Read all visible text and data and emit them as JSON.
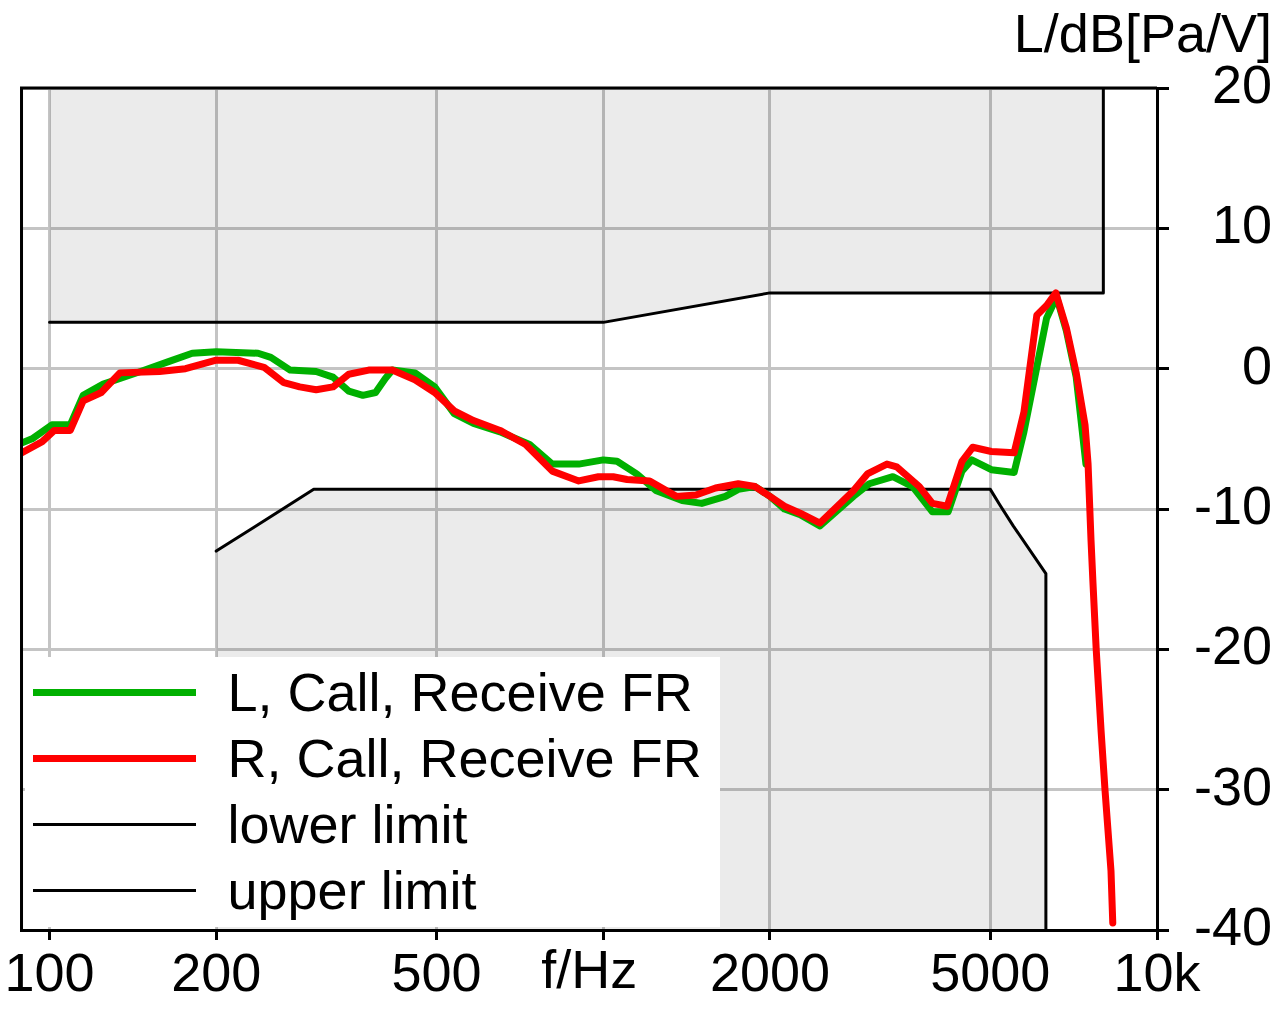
{
  "chart_data": {
    "type": "line",
    "xlabel": "f/Hz",
    "ylabel": "L/dB[Pa/V]",
    "log": "x",
    "grid": true,
    "legend": "bottom left",
    "xlim": [
      89,
      10000
    ],
    "ylim": [
      -40,
      20
    ],
    "xticks": [
      100,
      200,
      500,
      {
        "value": 1000,
        "label": null
      },
      2000,
      5000,
      {
        "value": 10000,
        "label": "10k"
      }
    ],
    "yticks": [
      20,
      10,
      0,
      -10,
      -20,
      -30,
      -40
    ],
    "series": [
      {
        "name": "L, Call, Receive FR",
        "color": "#00b000",
        "x": [
          89,
          93,
          101,
          109,
          115,
          125,
          134,
          146,
          164,
          181,
          200,
          238,
          251,
          272,
          303,
          325,
          347,
          368,
          388,
          404,
          416,
          457,
          496,
          538,
          583,
          651,
          736,
          809,
          903,
          1000,
          1059,
          1149,
          1247,
          1388,
          1506,
          1662,
          1753,
          1880,
          2000,
          2124,
          2268,
          2462,
          2830,
          3022,
          3334,
          3620,
          3930,
          4196,
          4444,
          4628,
          5022,
          5520,
          5750,
          6066,
          6318,
          6588,
          6860,
          7146,
          7442
        ],
        "values": [
          -5.3,
          -5.0,
          -4.0,
          -4.0,
          -1.9,
          -1.1,
          -0.7,
          -0.2,
          0.5,
          1.1,
          1.2,
          1.1,
          0.8,
          -0.1,
          -0.2,
          -0.6,
          -1.6,
          -1.9,
          -1.7,
          -0.7,
          -0.1,
          -0.3,
          -1.3,
          -3.2,
          -3.9,
          -4.5,
          -5.4,
          -6.8,
          -6.8,
          -6.5,
          -6.6,
          -7.5,
          -8.7,
          -9.4,
          -9.6,
          -9.1,
          -8.6,
          -8.4,
          -9.1,
          -10.0,
          -10.4,
          -11.2,
          -9.1,
          -8.2,
          -7.7,
          -8.4,
          -10.2,
          -10.2,
          -7.3,
          -6.5,
          -7.2,
          -7.4,
          -4.5,
          0.1,
          3.6,
          5.1,
          2.7,
          -0.6,
          -6.8
        ]
      },
      {
        "name": "R, Call, Receive FR",
        "color": "#ff0000",
        "x": [
          89,
          97,
          102,
          109,
          115,
          124,
          134,
          158,
          176,
          200,
          219,
          244,
          265,
          283,
          303,
          325,
          347,
          377,
          416,
          457,
          496,
          538,
          583,
          651,
          724,
          809,
          903,
          980,
          1042,
          1104,
          1213,
          1355,
          1470,
          1595,
          1753,
          1880,
          2000,
          2124,
          2268,
          2462,
          2830,
          2999,
          3253,
          3388,
          3722,
          3930,
          4180,
          4444,
          4648,
          5022,
          5520,
          5750,
          6066,
          6318,
          6566,
          6860,
          7146,
          7413,
          7508,
          7600,
          7661,
          7766,
          7925,
          8055,
          8259,
          8320
        ],
        "values": [
          -6.0,
          -5.2,
          -4.4,
          -4.4,
          -2.3,
          -1.7,
          -0.3,
          -0.2,
          0.0,
          0.6,
          0.6,
          0.1,
          -1.0,
          -1.3,
          -1.5,
          -1.3,
          -0.4,
          -0.1,
          -0.1,
          -0.8,
          -1.7,
          -3.0,
          -3.7,
          -4.4,
          -5.4,
          -7.3,
          -8.0,
          -7.7,
          -7.7,
          -7.9,
          -8.0,
          -9.1,
          -9.0,
          -8.5,
          -8.2,
          -8.4,
          -9.1,
          -9.8,
          -10.3,
          -11.0,
          -8.7,
          -7.5,
          -6.8,
          -7.0,
          -8.4,
          -9.6,
          -9.8,
          -6.6,
          -5.6,
          -5.9,
          -6.0,
          -3.1,
          3.8,
          4.5,
          5.4,
          2.9,
          -0.3,
          -4.0,
          -6.8,
          -12.2,
          -15.2,
          -20.0,
          -25.8,
          -30.0,
          -35.8,
          -39.5
        ]
      },
      {
        "name": "lower limit",
        "type": "area",
        "color": "#000000",
        "x": [
          200,
          200,
          300,
          5000,
          5200,
          5500,
          6300,
          6300
        ],
        "values": [
          -40,
          -13,
          -8.6,
          -8.6,
          -9.7,
          -11.2,
          -14.6,
          -40
        ]
      },
      {
        "name": "upper limit",
        "type": "area",
        "color": "#000000",
        "x": [
          100,
          100,
          1000,
          2000,
          8000,
          8000
        ],
        "values": [
          20,
          3.3,
          3.3,
          5.4,
          5.4,
          20
        ]
      }
    ]
  }
}
